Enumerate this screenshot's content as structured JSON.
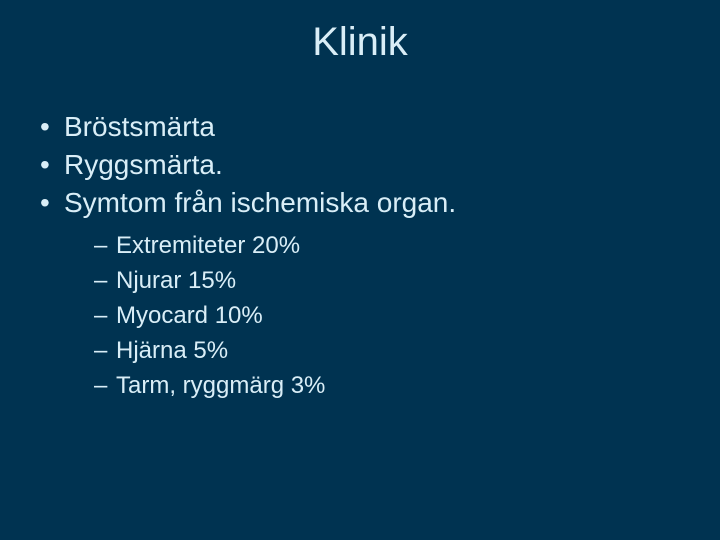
{
  "slide": {
    "background_color": "#003351",
    "text_color": "#d9eef7",
    "title": "Klinik",
    "title_fontsize": 40,
    "bullets": [
      {
        "text": "Bröstsmärta"
      },
      {
        "text": "Ryggsmärta."
      },
      {
        "text": "Symtom från ischemiska organ.",
        "sub": [
          {
            "text": "Extremiteter 20%"
          },
          {
            "text": "Njurar 15%"
          },
          {
            "text": "Myocard 10%"
          },
          {
            "text": "Hjärna 5%"
          },
          {
            "text": "Tarm, ryggmärg 3%"
          }
        ]
      }
    ],
    "bullet_fontsize": 28,
    "sub_bullet_fontsize": 24,
    "font_family": "Arial"
  }
}
